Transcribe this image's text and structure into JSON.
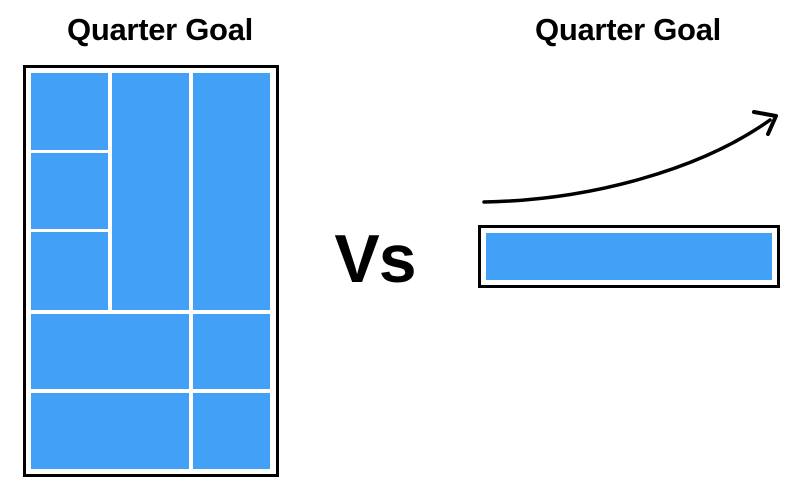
{
  "left_panel": {
    "title": "Quarter Goal",
    "block_count": 9
  },
  "right_panel": {
    "title": "Quarter Goal",
    "block_count": 1
  },
  "separator": {
    "label": "Vs"
  },
  "colors": {
    "block_fill": "#42a1f6",
    "frame_border": "#000000",
    "background": "#ffffff",
    "arrow": "#000000"
  },
  "icons": {
    "trend_arrow": "curved-upward-arrow-icon"
  }
}
